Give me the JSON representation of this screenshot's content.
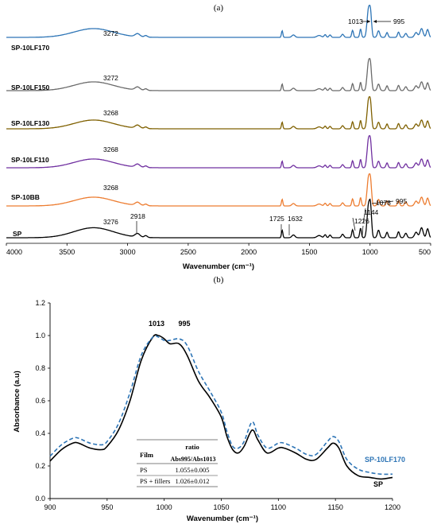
{
  "chart_data": [
    {
      "type": "line",
      "panel_label": "(a)",
      "xlabel": "Wavenumber (cm⁻¹)",
      "ylabel": "",
      "xlim": [
        4000,
        500
      ],
      "x_reversed": true,
      "x_ticks": [
        4000,
        3500,
        3000,
        2500,
        2000,
        1500,
        1000,
        500
      ],
      "tick_labels": [
        "4000",
        "3500",
        "3000",
        "2500",
        "2000",
        "1500",
        "1000",
        "500"
      ],
      "series": [
        {
          "name": "SP-10LF170",
          "color": "#2e75b6",
          "band_label": "3272"
        },
        {
          "name": "SP-10LF150",
          "color": "#6b6b6b",
          "band_label": "3272"
        },
        {
          "name": "SP-10LF130",
          "color": "#7f6000",
          "band_label": "3268"
        },
        {
          "name": "SP-10LF110",
          "color": "#7030a0",
          "band_label": "3268"
        },
        {
          "name": "SP-10BB",
          "color": "#ed7d31",
          "band_label": "3268"
        },
        {
          "name": "SP",
          "color": "#000000",
          "band_label": "3276"
        }
      ],
      "annotations": [
        "2918",
        "1725",
        "1632",
        "1226",
        "1144",
        "1078",
        "995",
        "1013",
        "995"
      ]
    },
    {
      "type": "line",
      "panel_label": "(b)",
      "xlabel": "Wavenumber (cm⁻¹)",
      "ylabel": "Absorbance (a.u)",
      "xlim": [
        900,
        1200
      ],
      "ylim": [
        0.0,
        1.2
      ],
      "x_ticks": [
        "900",
        "950",
        "1000",
        "1050",
        "1100",
        "1150",
        "1200"
      ],
      "y_ticks": [
        "0.0",
        "0.2",
        "0.4",
        "0.6",
        "0.8",
        "1.0",
        "1.2"
      ],
      "peak_labels": [
        "1013",
        "995"
      ],
      "series": [
        {
          "name": "SP",
          "color": "#000000",
          "style": "solid",
          "x": [
            900,
            910,
            920,
            925,
            935,
            945,
            950,
            960,
            970,
            980,
            990,
            995,
            1000,
            1005,
            1013,
            1020,
            1030,
            1040,
            1050,
            1055,
            1060,
            1065,
            1070,
            1077,
            1082,
            1090,
            1100,
            1105,
            1115,
            1125,
            1133,
            1143,
            1148,
            1153,
            1160,
            1170,
            1180,
            1190,
            1200
          ],
          "y": [
            0.23,
            0.3,
            0.34,
            0.34,
            0.31,
            0.3,
            0.32,
            0.42,
            0.6,
            0.85,
            0.99,
            1.0,
            0.98,
            0.95,
            0.95,
            0.88,
            0.72,
            0.62,
            0.5,
            0.38,
            0.3,
            0.28,
            0.32,
            0.42,
            0.36,
            0.28,
            0.31,
            0.31,
            0.28,
            0.24,
            0.24,
            0.31,
            0.34,
            0.31,
            0.2,
            0.14,
            0.13,
            0.12,
            0.13
          ]
        },
        {
          "name": "SP-10LF170",
          "color": "#2e75b6",
          "style": "dashed",
          "x": [
            900,
            910,
            920,
            925,
            935,
            945,
            950,
            960,
            970,
            980,
            990,
            995,
            1000,
            1005,
            1013,
            1020,
            1030,
            1040,
            1050,
            1055,
            1060,
            1065,
            1070,
            1077,
            1082,
            1090,
            1100,
            1105,
            1115,
            1125,
            1133,
            1143,
            1148,
            1153,
            1160,
            1170,
            1180,
            1190,
            1200
          ],
          "y": [
            0.26,
            0.33,
            0.37,
            0.37,
            0.34,
            0.33,
            0.35,
            0.46,
            0.65,
            0.88,
            0.99,
            0.99,
            0.97,
            0.97,
            0.98,
            0.94,
            0.78,
            0.66,
            0.53,
            0.41,
            0.32,
            0.31,
            0.35,
            0.47,
            0.39,
            0.31,
            0.34,
            0.34,
            0.31,
            0.27,
            0.27,
            0.35,
            0.38,
            0.35,
            0.24,
            0.18,
            0.16,
            0.15,
            0.15
          ]
        }
      ],
      "inset_table": {
        "header_film": "Film",
        "header_ratio_line1": "ratio",
        "header_ratio_line2": "Abs995/Abs1013",
        "rows": [
          {
            "film": "PS",
            "ratio": "1.055±0.005"
          },
          {
            "film": "PS + fillers",
            "ratio": "1.026±0.012"
          }
        ]
      }
    }
  ]
}
